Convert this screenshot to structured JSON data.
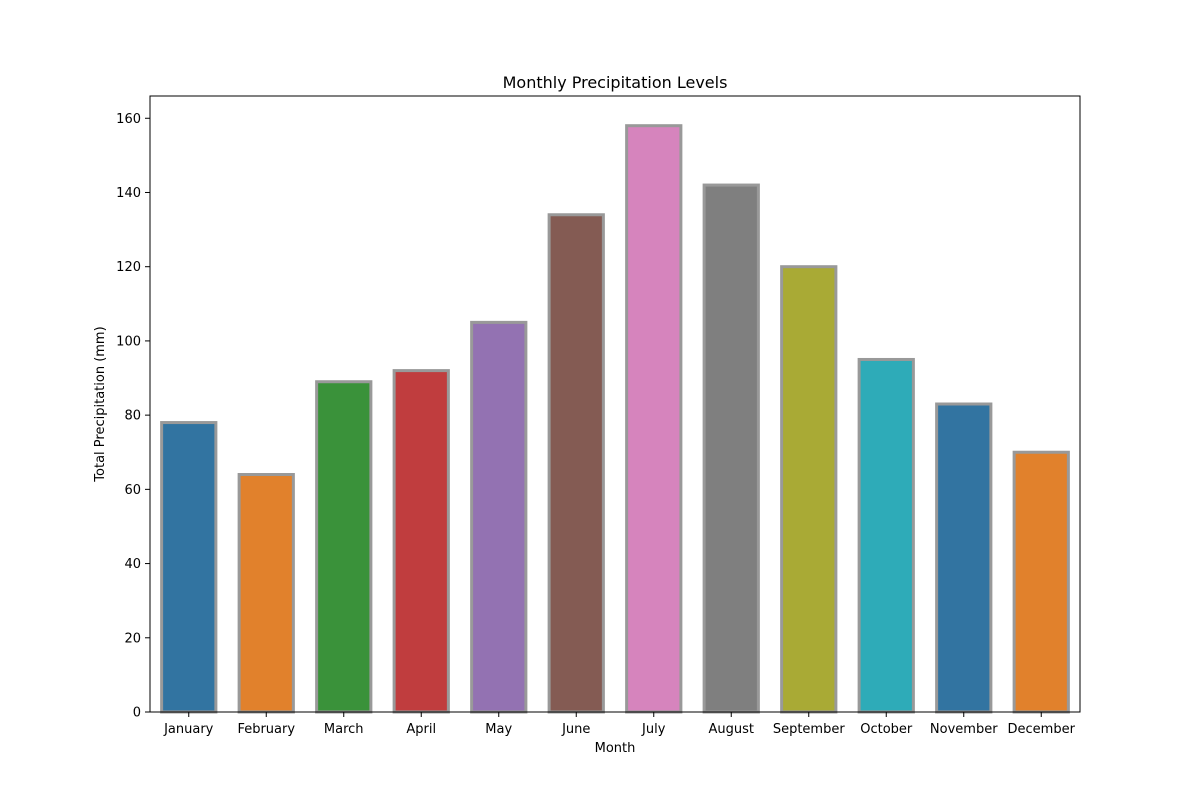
{
  "chart_data": {
    "type": "bar",
    "title": "Monthly Precipitation Levels",
    "xlabel": "Month",
    "ylabel": "Total Precipitation (mm)",
    "categories": [
      "January",
      "February",
      "March",
      "April",
      "May",
      "June",
      "July",
      "August",
      "September",
      "October",
      "November",
      "December"
    ],
    "values": [
      78,
      64,
      89,
      92,
      105,
      134,
      158,
      142,
      120,
      95,
      83,
      70
    ],
    "colors": [
      "#3274a1",
      "#e1812c",
      "#3a923a",
      "#c03d3e",
      "#9372b2",
      "#845b53",
      "#d684bd",
      "#7f7f7f",
      "#a9aa35",
      "#2eabb8",
      "#3274a1",
      "#e1812c"
    ],
    "edge_color": "#999999",
    "ylim": [
      0,
      166
    ],
    "yticks": [
      0,
      20,
      40,
      60,
      80,
      100,
      120,
      140,
      160
    ],
    "grid": false,
    "legend": "none"
  }
}
